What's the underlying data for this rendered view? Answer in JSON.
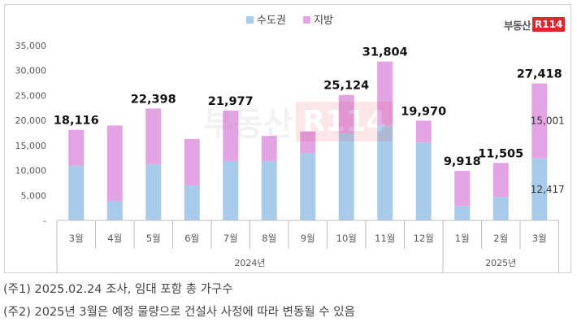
{
  "logo": {
    "text": "부동산",
    "box": "R114"
  },
  "notes": [
    "(주1) 2025.02.24 조사, 임대 포함 총 가구수",
    "(주2) 2025년 3월은 예정 물량으로 건설사 사정에 따라 변동될 수 있음"
  ],
  "colors": {
    "capital": "#a9cbea",
    "regional": "#e3a4e3",
    "axis": "#bfbfbf",
    "text": "#595959"
  },
  "chart_data": {
    "type": "bar",
    "stacked": true,
    "title": "",
    "xlabel": "",
    "ylabel": "",
    "ylim": [
      0,
      35000
    ],
    "yticks": [
      0,
      5000,
      10000,
      15000,
      20000,
      25000,
      30000,
      35000
    ],
    "ytick_labels": [
      "-",
      "5,000",
      "10,000",
      "15,000",
      "20,000",
      "25,000",
      "30,000",
      "35,000"
    ],
    "legend_position": "top-center",
    "categories": [
      "3월",
      "4월",
      "5월",
      "6월",
      "7월",
      "8월",
      "9월",
      "10월",
      "11월",
      "12월",
      "1월",
      "2월",
      "3월"
    ],
    "groups": [
      {
        "label": "2024년",
        "start": 0,
        "end": 9
      },
      {
        "label": "2025년",
        "start": 10,
        "end": 12
      }
    ],
    "series": [
      {
        "name": "수도권",
        "values": [
          11000,
          3800,
          11200,
          7000,
          11900,
          11900,
          13500,
          17500,
          19000,
          15600,
          2900,
          4700,
          12417
        ]
      },
      {
        "name": "지방",
        "values": [
          7116,
          15200,
          11198,
          9300,
          10077,
          5000,
          4300,
          7624,
          12804,
          4370,
          7018,
          6805,
          15001
        ]
      }
    ],
    "total_labels": [
      "18,116",
      "",
      "22,398",
      "",
      "21,977",
      "",
      "",
      "25,124",
      "31,804",
      "19,970",
      "9,918",
      "11,505",
      "27,418"
    ],
    "segment_labels": {
      "capital": [
        "",
        "",
        "",
        "",
        "",
        "",
        "",
        "",
        "",
        "",
        "",
        "",
        "12,417"
      ],
      "regional": [
        "",
        "",
        "",
        "",
        "",
        "",
        "",
        "",
        "",
        "",
        "",
        "",
        "15,001"
      ]
    }
  }
}
